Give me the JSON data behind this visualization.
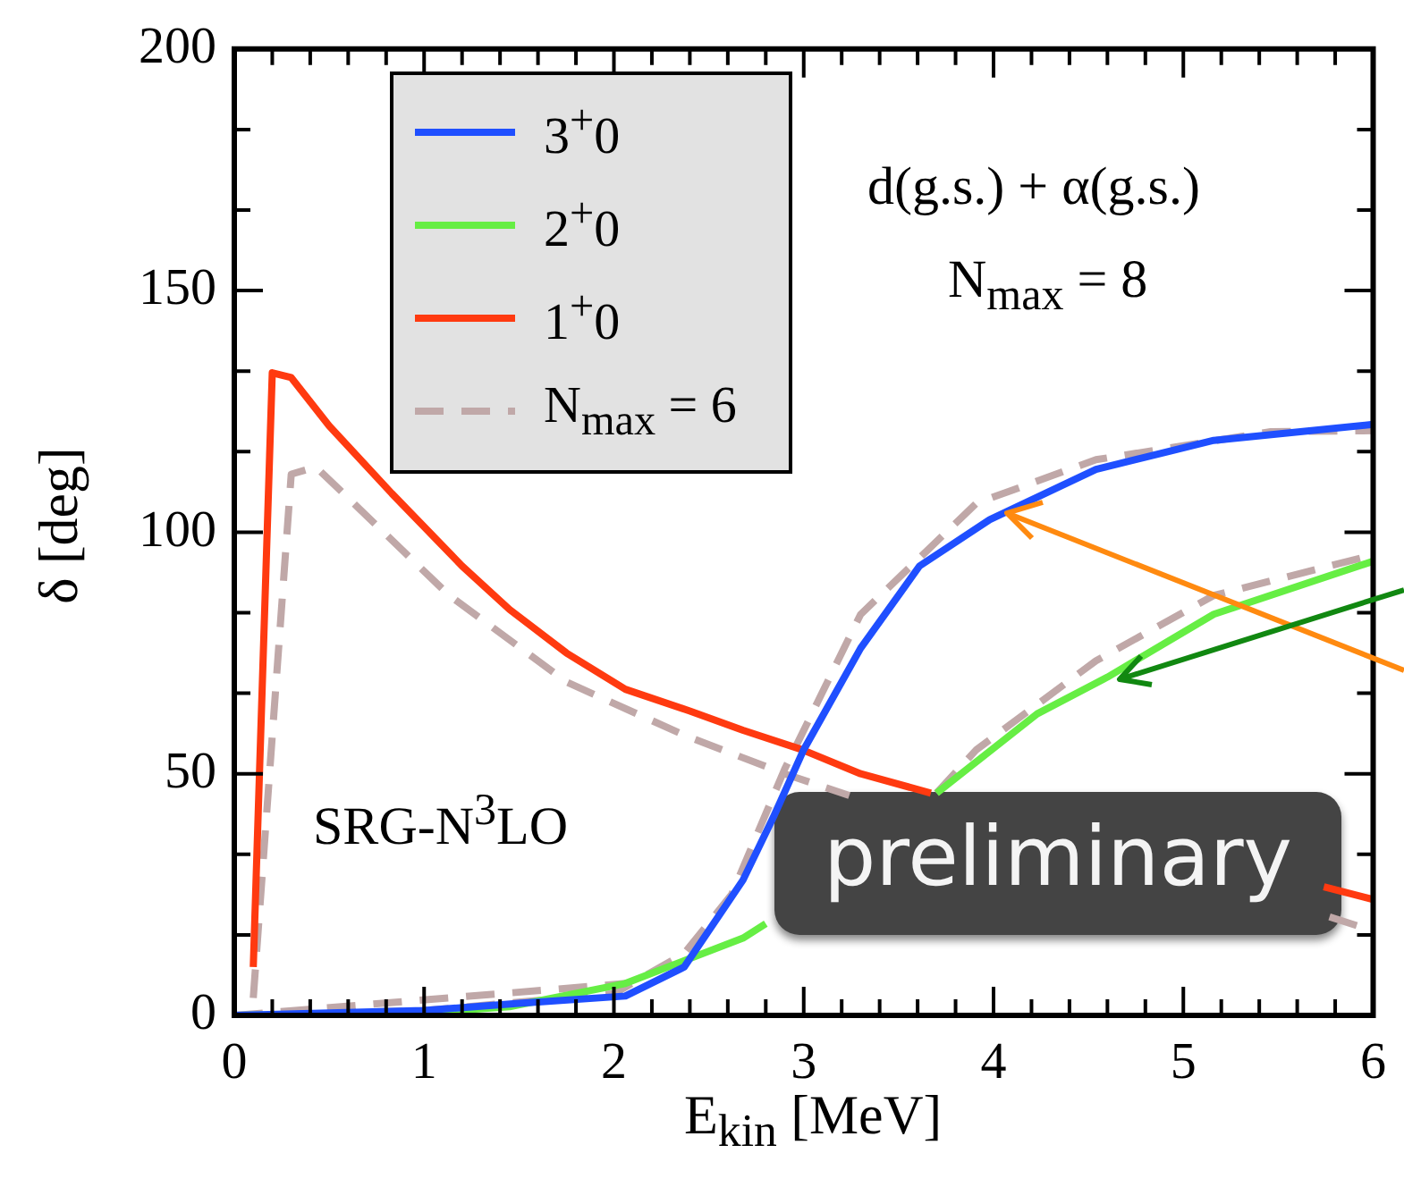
{
  "chart_data": {
    "type": "line",
    "xlabel": "E$_{kin}$ [MeV]",
    "ylabel": "δ [deg]",
    "xlim": [
      0,
      6
    ],
    "ylim": [
      0,
      200
    ],
    "xticks": [
      0,
      {
        "value": 0.2,
        "label": null
      },
      {
        "value": 0.4,
        "label": null
      },
      {
        "value": 0.6,
        "label": null
      },
      {
        "value": 0.8,
        "label": null
      },
      1,
      {
        "value": 1.2,
        "label": null
      },
      {
        "value": 1.4,
        "label": null
      },
      {
        "value": 1.6,
        "label": null
      },
      {
        "value": 1.8,
        "label": null
      },
      2,
      {
        "value": 2.2,
        "label": null
      },
      {
        "value": 2.4,
        "label": null
      },
      {
        "value": 2.6,
        "label": null
      },
      {
        "value": 2.8,
        "label": null
      },
      3,
      {
        "value": 3.2,
        "label": null
      },
      {
        "value": 3.4,
        "label": null
      },
      {
        "value": 3.6,
        "label": null
      },
      {
        "value": 3.8,
        "label": null
      },
      4,
      {
        "value": 4.2,
        "label": null
      },
      {
        "value": 4.4,
        "label": null
      },
      {
        "value": 4.6,
        "label": null
      },
      {
        "value": 4.8,
        "label": null
      },
      5,
      {
        "value": 5.2,
        "label": null
      },
      {
        "value": 5.4,
        "label": null
      },
      {
        "value": 5.6,
        "label": null
      },
      {
        "value": 5.8,
        "label": null
      },
      6
    ],
    "yticks": [
      0,
      {
        "value": 16.67,
        "label": null
      },
      {
        "value": 33.33,
        "label": null
      },
      50,
      {
        "value": 66.67,
        "label": null
      },
      {
        "value": 83.33,
        "label": null
      },
      100,
      {
        "value": 116.67,
        "label": null
      },
      {
        "value": 133.33,
        "label": null
      },
      150,
      {
        "value": 166.67,
        "label": null
      },
      {
        "value": 183.33,
        "label": null
      },
      200
    ],
    "grid": false,
    "legend": "top left",
    "marker": "none",
    "annotations": [
      "d(g.s.) + α(g.s.)",
      "N$_{max}$ = 8",
      "SRG-N$^{3}$LO",
      "preliminary"
    ],
    "series": [
      {
        "name": "3$^{+}$0",
        "color": "#1f4fff",
        "line_style": "solid",
        "x": [
          0,
          1,
          1.5,
          2.06,
          2.37,
          2.68,
          2.84,
          3,
          3.3,
          3.61,
          3.98,
          4.54,
          5.16,
          6
        ],
        "values": [
          0,
          1,
          2.5,
          4,
          10,
          28,
          41,
          55,
          76,
          93,
          102.6,
          113,
          119,
          122.3
        ]
      },
      {
        "name": "2$^{+}$0",
        "color": "#66ee44",
        "line_style": "solid",
        "x": [
          0,
          1,
          1.45,
          2.06,
          2.68,
          2.8,
          3.2,
          3.7,
          4.23,
          4.6,
          5.16,
          6
        ],
        "values": [
          0,
          0.5,
          1.8,
          6.6,
          16,
          19,
          null,
          46,
          62.4,
          70,
          83,
          94
        ]
      },
      {
        "name": "1$^{+}$0",
        "color": "#ff3a10",
        "line_style": "solid",
        "x": [
          0.1,
          0.2,
          0.3,
          0.5,
          0.83,
          1.2,
          1.45,
          1.75,
          2.06,
          2.4,
          2.68,
          2.99,
          3.3,
          3.67,
          4.5,
          5.74,
          6
        ],
        "values": [
          10,
          133,
          132,
          122,
          108,
          93,
          84,
          75,
          67.5,
          63,
          59,
          55,
          50,
          46,
          null,
          26.6,
          24
        ]
      },
      {
        "name": "N$_{max}$ = 6",
        "color": "#c0a8a8",
        "line_style": "dashed",
        "x": [
          0.1,
          0.3,
          0.43,
          1.13,
          1.75,
          2.37,
          2.9,
          3.24,
          4.5,
          5.77,
          6
        ],
        "values": [
          3.6,
          112,
          113.5,
          87,
          69,
          58,
          50,
          45.5,
          null,
          20.4,
          17.5
        ]
      },
      {
        "color": "#c0a8a8",
        "line_style": "dashed",
        "x": [
          0,
          1,
          2,
          2.37,
          2.62,
          2.9,
          3.3,
          3.91,
          4.54,
          5.46,
          6
        ],
        "values": [
          0,
          1,
          4.5,
          12.8,
          25,
          51,
          83,
          106,
          115,
          120.8,
          121
        ]
      },
      {
        "color": "#c0a8a8",
        "line_style": "dashed",
        "x": [
          0,
          2.06,
          2.68,
          2.8,
          3.2,
          3.7,
          3.91,
          4.54,
          5.16,
          6
        ],
        "values": [
          0,
          6.6,
          null,
          null,
          null,
          46,
          55,
          73.4,
          86.9,
          95.3
        ]
      }
    ]
  }
}
